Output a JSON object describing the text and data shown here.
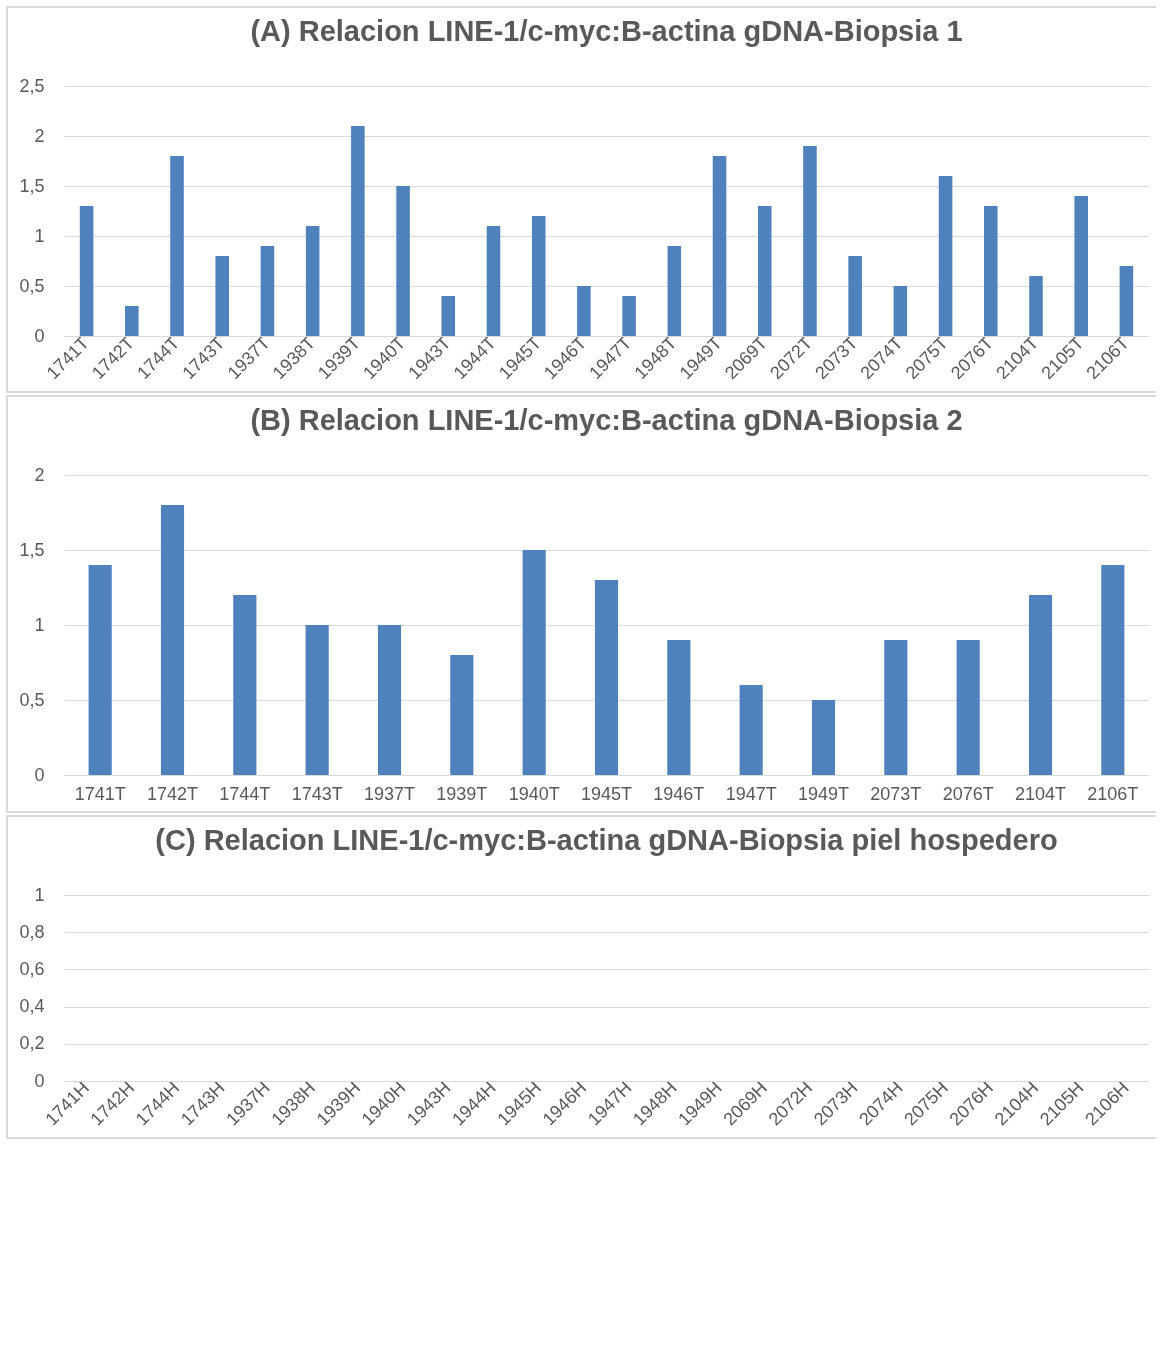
{
  "chart_data": [
    {
      "type": "bar",
      "title": "(A) Relacion LINE-1/c-myc:B-actina gDNA-Biopsia 1",
      "categories": [
        "1741T",
        "1742T",
        "1744T",
        "1743T",
        "1937T",
        "1938T",
        "1939T",
        "1940T",
        "1943T",
        "1944T",
        "1945T",
        "1946T",
        "1947T",
        "1948T",
        "1949T",
        "2069T",
        "2072T",
        "2073T",
        "2074T",
        "2075T",
        "2076T",
        "2104T",
        "2105T",
        "2106T"
      ],
      "values": [
        1.3,
        0.3,
        1.8,
        0.8,
        0.9,
        1.1,
        2.1,
        1.5,
        0.4,
        1.1,
        1.2,
        0.5,
        0.4,
        0.9,
        1.8,
        1.3,
        1.9,
        0.8,
        0.5,
        1.6,
        1.3,
        0.6,
        1.4,
        0.7
      ],
      "color": "#4f81bd",
      "ylim": [
        0,
        2.5
      ],
      "yticks": [
        0,
        {
          "value": 0.5,
          "label": "0,5"
        },
        1,
        {
          "value": 1.5,
          "label": "1,5"
        },
        2,
        {
          "value": 2.5,
          "label": "2,5"
        }
      ],
      "grid": "y"
    },
    {
      "type": "bar",
      "title": "(B) Relacion LINE-1/c-myc:B-actina gDNA-Biopsia 2",
      "categories": [
        "1741T",
        "1742T",
        "1744T",
        "1743T",
        "1937T",
        "1939T",
        "1940T",
        "1945T",
        "1946T",
        "1947T",
        "1949T",
        "2073T",
        "2076T",
        "2104T",
        "2106T"
      ],
      "values": [
        1.4,
        1.8,
        1.2,
        1.0,
        1.0,
        0.8,
        1.5,
        1.3,
        0.9,
        0.6,
        0.5,
        0.9,
        0.9,
        1.2,
        1.4
      ],
      "color": "#4f81bd",
      "ylim": [
        0,
        2
      ],
      "yticks": [
        0,
        {
          "value": 0.5,
          "label": "0,5"
        },
        1,
        {
          "value": 1.5,
          "label": "1,5"
        },
        2
      ],
      "grid": "y"
    },
    {
      "type": "bar",
      "title": "(C) Relacion LINE-1/c-myc:B-actina gDNA-Biopsia piel hospedero",
      "categories": [
        "1741H",
        "1742H",
        "1744H",
        "1743H",
        "1937H",
        "1938H",
        "1939H",
        "1940H",
        "1943H",
        "1944H",
        "1945H",
        "1946H",
        "1947H",
        "1948H",
        "1949H",
        "2069H",
        "2072H",
        "2073H",
        "2074H",
        "2075H",
        "2076H",
        "2104H",
        "2105H",
        "2106H"
      ],
      "values": [
        null,
        null,
        null,
        null,
        null,
        null,
        null,
        null,
        null,
        null,
        null,
        null,
        null,
        null,
        null,
        null,
        null,
        null,
        null,
        null,
        null,
        null,
        null,
        null
      ],
      "color": "#4f81bd",
      "ylim": [
        0,
        1
      ],
      "yticks": [
        0,
        {
          "value": 0.2,
          "label": "0,2"
        },
        {
          "value": 0.4,
          "label": "0,4"
        },
        {
          "value": 0.6,
          "label": "0,6"
        },
        {
          "value": 0.8,
          "label": "0,8"
        },
        1
      ],
      "grid": "y"
    }
  ]
}
